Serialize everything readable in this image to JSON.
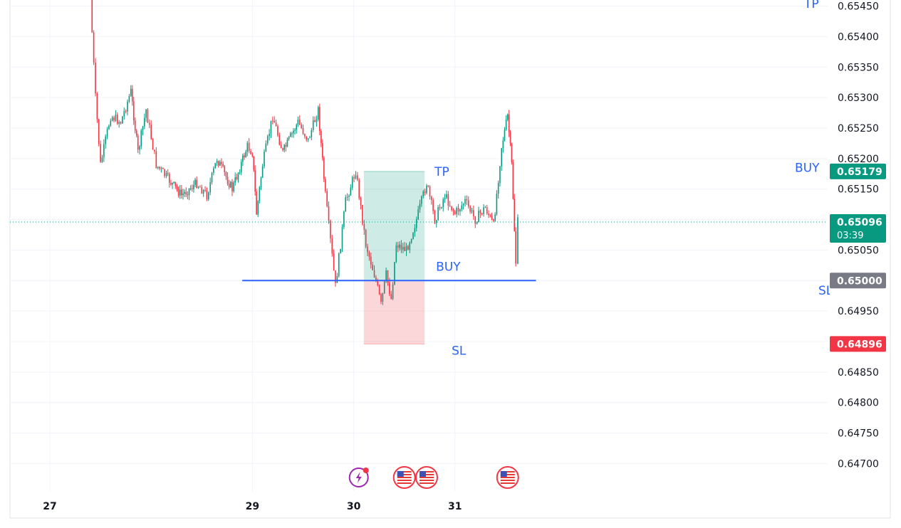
{
  "chart_data": {
    "type": "candlestick",
    "x_ticks": [
      "27",
      "29",
      "30",
      "31"
    ],
    "y_ticks": [
      "0.65450",
      "0.65400",
      "0.65350",
      "0.65300",
      "0.65250",
      "0.65200",
      "0.65150",
      "0.65050",
      "0.64950",
      "0.64850",
      "0.64800",
      "0.64750",
      "0.64700"
    ],
    "ylim": [
      0.64655,
      0.6546
    ],
    "grid": true,
    "current_price": {
      "value": 0.65096,
      "label": "0.65096",
      "countdown": "03:39",
      "color": "#089981"
    },
    "buy_line": {
      "value": 0.65,
      "label": "0.65000",
      "color": "#2962ff",
      "start_date": "28.9",
      "end_date": "31.8"
    },
    "position": {
      "side": "BUY",
      "entry": {
        "value": 0.65,
        "label": "BUY"
      },
      "take_profit": {
        "value": 0.65179,
        "label": "TP",
        "tag": "0.65179",
        "color": "#089981"
      },
      "stop_loss": {
        "value": 0.64896,
        "label": "SL",
        "tag": "0.64896",
        "color": "#f23645"
      },
      "start_date": "30.1",
      "end_date": "30.7"
    },
    "right_axis_markers": [
      {
        "text": "TP",
        "value": 0.65454
      },
      {
        "text": "BUY",
        "value": 0.65185
      },
      {
        "text": "SL",
        "value": 0.64984
      }
    ],
    "price_path": [
      {
        "t": "27.4",
        "p": 0.6546
      },
      {
        "t": "27.45",
        "p": 0.653
      },
      {
        "t": "27.5",
        "p": 0.6519
      },
      {
        "t": "27.6",
        "p": 0.6527
      },
      {
        "t": "27.7",
        "p": 0.6526
      },
      {
        "t": "27.8",
        "p": 0.6531
      },
      {
        "t": "27.87",
        "p": 0.6521
      },
      {
        "t": "27.95",
        "p": 0.6528
      },
      {
        "t": "28.05",
        "p": 0.6519
      },
      {
        "t": "28.15",
        "p": 0.6517
      },
      {
        "t": "28.3",
        "p": 0.6514
      },
      {
        "t": "28.45",
        "p": 0.6516
      },
      {
        "t": "28.55",
        "p": 0.6514
      },
      {
        "t": "28.65",
        "p": 0.652
      },
      {
        "t": "28.8",
        "p": 0.6515
      },
      {
        "t": "28.95",
        "p": 0.6522
      },
      {
        "t": "29.0",
        "p": 0.6521
      },
      {
        "t": "29.04",
        "p": 0.6511
      },
      {
        "t": "29.1",
        "p": 0.6519
      },
      {
        "t": "29.2",
        "p": 0.6527
      },
      {
        "t": "29.3",
        "p": 0.6521
      },
      {
        "t": "29.45",
        "p": 0.6526
      },
      {
        "t": "29.55",
        "p": 0.6523
      },
      {
        "t": "29.65",
        "p": 0.6528
      },
      {
        "t": "29.72",
        "p": 0.6514
      },
      {
        "t": "29.82",
        "p": 0.6499
      },
      {
        "t": "29.92",
        "p": 0.6513
      },
      {
        "t": "30.02",
        "p": 0.6518
      },
      {
        "t": "30.12",
        "p": 0.6506
      },
      {
        "t": "30.22",
        "p": 0.65
      },
      {
        "t": "30.27",
        "p": 0.6496
      },
      {
        "t": "30.32",
        "p": 0.6501
      },
      {
        "t": "30.37",
        "p": 0.6497
      },
      {
        "t": "30.42",
        "p": 0.6506
      },
      {
        "t": "30.52",
        "p": 0.6505
      },
      {
        "t": "30.62",
        "p": 0.651
      },
      {
        "t": "30.72",
        "p": 0.6516
      },
      {
        "t": "30.8",
        "p": 0.651
      },
      {
        "t": "30.9",
        "p": 0.6514
      },
      {
        "t": "31.0",
        "p": 0.6511
      },
      {
        "t": "31.1",
        "p": 0.6513
      },
      {
        "t": "31.2",
        "p": 0.651
      },
      {
        "t": "31.3",
        "p": 0.6512
      },
      {
        "t": "31.38",
        "p": 0.6509
      },
      {
        "t": "31.46",
        "p": 0.6522
      },
      {
        "t": "31.52",
        "p": 0.6527
      },
      {
        "t": "31.56",
        "p": 0.6519
      },
      {
        "t": "31.6",
        "p": 0.6503
      },
      {
        "t": "31.62",
        "p": 0.65096
      }
    ],
    "event_icons": [
      {
        "icon": "lightning-icon",
        "date": "30.05"
      },
      {
        "icon": "us-flag-icon",
        "date": "30.5"
      },
      {
        "icon": "us-flag-icon",
        "date": "30.72"
      },
      {
        "icon": "us-flag-icon",
        "date": "31.52"
      }
    ]
  }
}
